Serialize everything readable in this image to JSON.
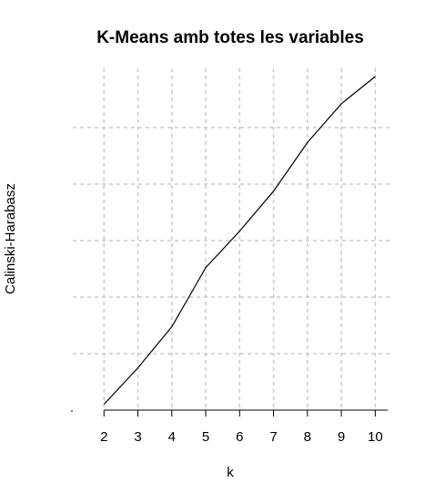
{
  "chart_data": {
    "type": "line",
    "title": "K-Means amb totes les variables",
    "xlabel": "k",
    "ylabel": "Calinski-Harabasz",
    "x": [
      2,
      3,
      4,
      5,
      6,
      7,
      8,
      9,
      10
    ],
    "xlim": [
      1.08,
      10.42
    ],
    "x_ticks": [
      "2",
      "3",
      "4",
      "5",
      "6",
      "7",
      "8",
      "9",
      "10"
    ],
    "y_tick_labels_shown": false,
    "ylim": [
      -1.0,
      58.0
    ],
    "series": [
      {
        "values": [
          0.0,
          6.3,
          13.4,
          23.6,
          29.9,
          36.8,
          45.2,
          51.9,
          56.6
        ]
      }
    ],
    "grid": true,
    "grid_style": "dashed",
    "grid_color": "#cccccc",
    "line_color": "#000000"
  }
}
